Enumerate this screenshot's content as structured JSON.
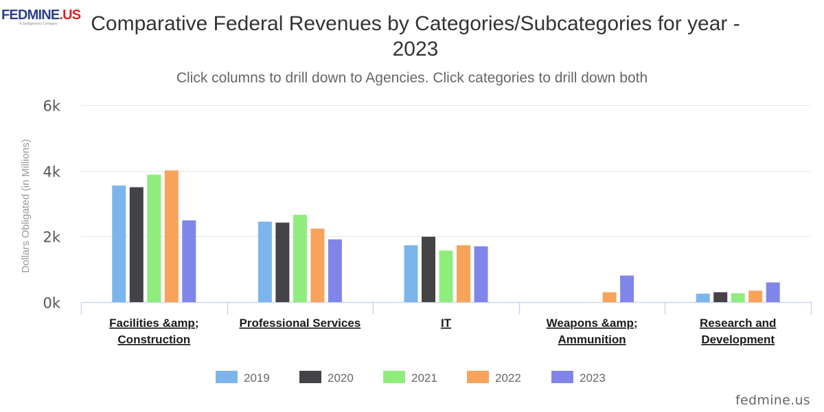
{
  "logo": {
    "main": "FEDMINE",
    "accent": ".US",
    "tagline": "A Seidigenesis Company"
  },
  "watermark": "fedmine.us",
  "chart_data": {
    "type": "bar",
    "title": "Comparative Federal Revenues by Categories/Subcategories for year - 2023",
    "subtitle": "Click columns to drill down to Agencies. Click categories to drill down both",
    "ylabel": "Dollars Obligated (in Millions)",
    "xlabel": "",
    "ylim": [
      0,
      6000
    ],
    "yticks": [
      0,
      2000,
      4000,
      6000
    ],
    "ytick_labels": [
      "0k",
      "2k",
      "4k",
      "6k"
    ],
    "grid": true,
    "legend_position": "bottom-center",
    "categories": [
      [
        "Facilities &amp;",
        "Construction"
      ],
      [
        "Professional Services"
      ],
      [
        "IT"
      ],
      [
        "Weapons &amp;",
        "Ammunition"
      ],
      [
        "Research and",
        "Development"
      ]
    ],
    "series": [
      {
        "name": "2019",
        "color": "#7cb5ec",
        "values": [
          3550,
          2450,
          1730,
          0,
          260
        ]
      },
      {
        "name": "2020",
        "color": "#434348",
        "values": [
          3500,
          2420,
          1990,
          0,
          300
        ]
      },
      {
        "name": "2021",
        "color": "#90ed7d",
        "values": [
          3880,
          2660,
          1570,
          0,
          270
        ]
      },
      {
        "name": "2022",
        "color": "#f7a35c",
        "values": [
          4010,
          2240,
          1730,
          300,
          350
        ]
      },
      {
        "name": "2023",
        "color": "#8085e9",
        "values": [
          2490,
          1910,
          1700,
          810,
          600
        ]
      }
    ]
  }
}
